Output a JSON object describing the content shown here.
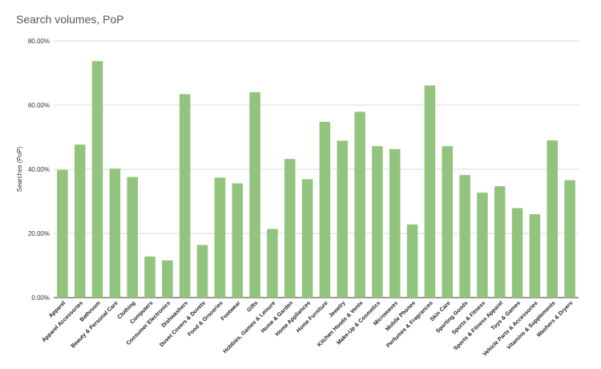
{
  "chart_data": {
    "type": "bar",
    "title": "Search volumes, PoP",
    "ylabel": "Searches (PoP)",
    "xlabel": "",
    "ylim": [
      0,
      80
    ],
    "yticks": [
      "0.00%",
      "20.00%",
      "40.00%",
      "60.00%",
      "80.00%"
    ],
    "grid": true,
    "legend": "none",
    "bar_color": "#93c47d",
    "categories": [
      "Apparel",
      "Apparel Accessories",
      "Bathroom",
      "Beauty & Personal Care",
      "Clothing",
      "Computers",
      "Consumer Electronics",
      "Dishwashers",
      "Duvet Covers & Duvets",
      "Food & Groceries",
      "Footwear",
      "Gifts",
      "Hobbies, Games & Leisure",
      "Home & Garden",
      "Home Appliances",
      "Home Furniture",
      "Jewelry",
      "Kitchen Hoods & Vents",
      "Make-Up & Cosmetics",
      "Microwaves",
      "Mobile Phones",
      "Perfumes & Fragrances",
      "Skin Care",
      "Sporting Goods",
      "Sports & Fitness",
      "Sports & Fitness Apparel",
      "Toys & Games",
      "Vehicle Parts & Accessories",
      "Vitamins & Supplements",
      "Washers & Dryers"
    ],
    "values": [
      39.8,
      47.7,
      73.7,
      40.2,
      37.6,
      12.8,
      11.6,
      63.4,
      16.4,
      37.4,
      35.6,
      64.0,
      21.4,
      43.2,
      36.9,
      54.8,
      48.9,
      57.9,
      47.2,
      46.3,
      22.8,
      66.1,
      47.2,
      38.2,
      32.7,
      34.7,
      27.9,
      26.0,
      49.0,
      36.6
    ]
  }
}
